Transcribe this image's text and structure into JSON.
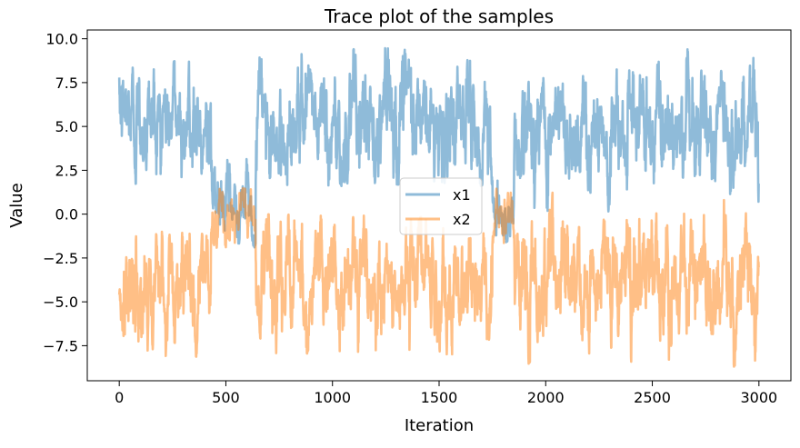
{
  "chart_data": {
    "type": "line",
    "title": "Trace plot of the samples",
    "xlabel": "Iteration",
    "ylabel": "Value",
    "xlim": [
      -150,
      3150
    ],
    "ylim": [
      -9.5,
      10.5
    ],
    "xticks": [
      0,
      500,
      1000,
      1500,
      2000,
      2500,
      3000
    ],
    "xtick_labels": [
      "0",
      "500",
      "1000",
      "1500",
      "2000",
      "2500",
      "3000"
    ],
    "yticks": [
      10.0,
      7.5,
      5.0,
      2.5,
      0.0,
      -2.5,
      -5.0,
      -7.5
    ],
    "ytick_labels": [
      "10.0",
      "7.5",
      "5.0",
      "2.5",
      "0.0",
      "−2.5",
      "−5.0",
      "−7.5"
    ],
    "grid": false,
    "legend_position": "center",
    "series": [
      {
        "name": "x1",
        "color": "#1f77b4",
        "opacity": 0.5,
        "segments": [
          {
            "x0": 0,
            "x1": 430,
            "mean": 5.5,
            "spread": 1.5,
            "min": 1.3,
            "max": 8.8
          },
          {
            "x0": 430,
            "x1": 640,
            "mean": 0.3,
            "spread": 1.0,
            "min": -1.9,
            "max": 4.2
          },
          {
            "x0": 640,
            "x1": 1750,
            "mean": 5.2,
            "spread": 1.6,
            "min": 1.6,
            "max": 9.6
          },
          {
            "x0": 1750,
            "x1": 1850,
            "mean": 0.0,
            "spread": 0.8,
            "min": -2.2,
            "max": 2.5
          },
          {
            "x0": 1850,
            "x1": 3000,
            "mean": 4.8,
            "spread": 1.6,
            "min": 0.0,
            "max": 9.5
          }
        ]
      },
      {
        "name": "x2",
        "color": "#ff7f0e",
        "opacity": 0.5,
        "segments": [
          {
            "x0": 0,
            "x1": 430,
            "mean": -4.0,
            "spread": 1.6,
            "min": -8.2,
            "max": -1.0
          },
          {
            "x0": 430,
            "x1": 640,
            "mean": 0.0,
            "spread": 0.8,
            "min": -2.0,
            "max": 1.5
          },
          {
            "x0": 640,
            "x1": 1750,
            "mean": -3.8,
            "spread": 1.6,
            "min": -8.0,
            "max": 0.0
          },
          {
            "x0": 1750,
            "x1": 1850,
            "mean": 0.0,
            "spread": 0.8,
            "min": -1.9,
            "max": 1.7
          },
          {
            "x0": 1850,
            "x1": 3000,
            "mean": -3.8,
            "spread": 1.7,
            "min": -8.7,
            "max": 1.3
          }
        ]
      }
    ]
  }
}
